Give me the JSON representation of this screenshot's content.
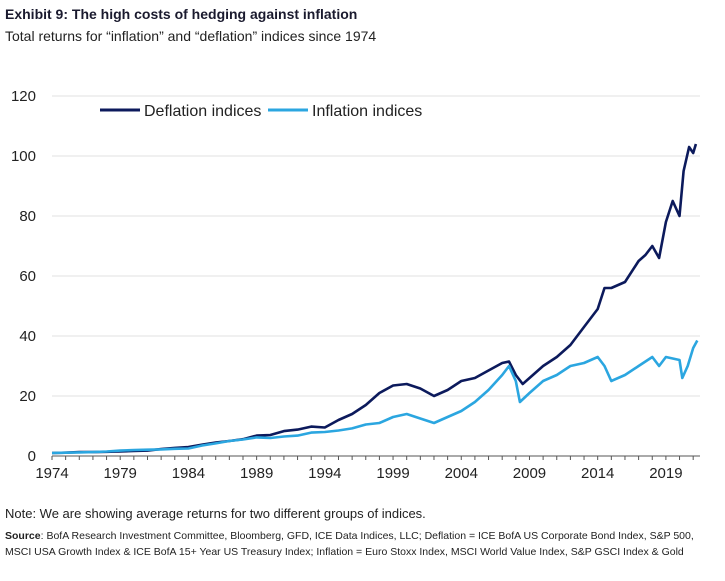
{
  "header": {
    "title": "Exhibit 9: The high costs of hedging against inflation",
    "subtitle": "Total returns for “inflation” and “deflation” indices since 1974"
  },
  "footer": {
    "note": "Note: We are showing average returns for two different groups of indices.",
    "source_label": "Source",
    "source_text": ": BofA Research Investment Committee, Bloomberg, GFD, ICE Data Indices, LLC; Deflation = ICE BofA US Corporate Bond Index, S&P 500, MSCI USA Growth Index & ICE BofA 15+ Year US Treasury Index; Inflation = Euro Stoxx Index, MSCI World Value Index, S&P GSCI Index & Gold"
  },
  "colors": {
    "deflation": "#0c1a5c",
    "inflation": "#2ba6e0",
    "axis": "#555555",
    "grid": "#e2e2e2"
  },
  "chart_data": {
    "type": "line",
    "title": "Exhibit 9: The high costs of hedging against inflation",
    "subtitle": "Total returns for “inflation” and “deflation” indices since 1974",
    "xlabel": "",
    "ylabel": "",
    "xlim": [
      1974,
      2021.5
    ],
    "ylim": [
      0,
      120
    ],
    "x_ticks": [
      "1974",
      "1979",
      "1984",
      "1989",
      "1994",
      "1999",
      "2004",
      "2009",
      "2014",
      "2019"
    ],
    "y_ticks": [
      "0",
      "20",
      "40",
      "60",
      "80",
      "100",
      "120"
    ],
    "grid": "horizontal",
    "legend_position": "top-left",
    "series": [
      {
        "name": "Deflation indices",
        "points": [
          [
            1974,
            1.0
          ],
          [
            1975,
            1.1
          ],
          [
            1976,
            1.3
          ],
          [
            1977,
            1.3
          ],
          [
            1978,
            1.4
          ],
          [
            1979,
            1.5
          ],
          [
            1980,
            1.7
          ],
          [
            1981,
            1.8
          ],
          [
            1982,
            2.3
          ],
          [
            1983,
            2.7
          ],
          [
            1984,
            3.0
          ],
          [
            1985,
            3.8
          ],
          [
            1986,
            4.5
          ],
          [
            1987,
            5.0
          ],
          [
            1988,
            5.6
          ],
          [
            1989,
            6.8
          ],
          [
            1990,
            7.0
          ],
          [
            1991,
            8.3
          ],
          [
            1992,
            8.8
          ],
          [
            1993,
            9.8
          ],
          [
            1994,
            9.5
          ],
          [
            1995,
            12.0
          ],
          [
            1996,
            14.0
          ],
          [
            1997,
            17.0
          ],
          [
            1998,
            21.0
          ],
          [
            1999,
            23.5
          ],
          [
            2000,
            24.0
          ],
          [
            2001,
            22.5
          ],
          [
            2002,
            20.0
          ],
          [
            2003,
            22.0
          ],
          [
            2004,
            25.0
          ],
          [
            2005,
            26.0
          ],
          [
            2006,
            28.5
          ],
          [
            2007,
            31.0
          ],
          [
            2007.5,
            31.5
          ],
          [
            2008,
            27.0
          ],
          [
            2008.5,
            24.0
          ],
          [
            2009,
            26.0
          ],
          [
            2010,
            30.0
          ],
          [
            2011,
            33.0
          ],
          [
            2012,
            37.0
          ],
          [
            2013,
            43.0
          ],
          [
            2014,
            49.0
          ],
          [
            2014.5,
            56.0
          ],
          [
            2015,
            56.0
          ],
          [
            2016,
            58.0
          ],
          [
            2017,
            65.0
          ],
          [
            2017.5,
            67.0
          ],
          [
            2018,
            70.0
          ],
          [
            2018.5,
            66.0
          ],
          [
            2019,
            78.0
          ],
          [
            2019.5,
            85.0
          ],
          [
            2020,
            80.0
          ],
          [
            2020.3,
            95.0
          ],
          [
            2020.7,
            103.0
          ],
          [
            2021,
            101.0
          ],
          [
            2021.2,
            104.0
          ]
        ]
      },
      {
        "name": "Inflation indices",
        "points": [
          [
            1974,
            1.0
          ],
          [
            1975,
            1.1
          ],
          [
            1976,
            1.2
          ],
          [
            1977,
            1.3
          ],
          [
            1978,
            1.5
          ],
          [
            1979,
            1.8
          ],
          [
            1980,
            2.0
          ],
          [
            1981,
            2.1
          ],
          [
            1982,
            2.2
          ],
          [
            1983,
            2.4
          ],
          [
            1984,
            2.5
          ],
          [
            1985,
            3.5
          ],
          [
            1986,
            4.2
          ],
          [
            1987,
            5.0
          ],
          [
            1988,
            5.5
          ],
          [
            1989,
            6.2
          ],
          [
            1990,
            6.0
          ],
          [
            1991,
            6.5
          ],
          [
            1992,
            6.8
          ],
          [
            1993,
            7.8
          ],
          [
            1994,
            8.0
          ],
          [
            1995,
            8.5
          ],
          [
            1996,
            9.2
          ],
          [
            1997,
            10.5
          ],
          [
            1998,
            11.0
          ],
          [
            1999,
            13.0
          ],
          [
            2000,
            14.0
          ],
          [
            2001,
            12.5
          ],
          [
            2002,
            11.0
          ],
          [
            2003,
            13.0
          ],
          [
            2004,
            15.0
          ],
          [
            2005,
            18.0
          ],
          [
            2006,
            22.0
          ],
          [
            2007,
            27.0
          ],
          [
            2007.5,
            30.0
          ],
          [
            2008,
            25.0
          ],
          [
            2008.3,
            18.0
          ],
          [
            2009,
            21.0
          ],
          [
            2010,
            25.0
          ],
          [
            2011,
            27.0
          ],
          [
            2012,
            30.0
          ],
          [
            2013,
            31.0
          ],
          [
            2014,
            33.0
          ],
          [
            2014.5,
            30.0
          ],
          [
            2015,
            25.0
          ],
          [
            2016,
            27.0
          ],
          [
            2017,
            30.0
          ],
          [
            2018,
            33.0
          ],
          [
            2018.5,
            30.0
          ],
          [
            2019,
            33.0
          ],
          [
            2020,
            32.0
          ],
          [
            2020.2,
            26.0
          ],
          [
            2020.6,
            30.0
          ],
          [
            2021,
            36.0
          ],
          [
            2021.3,
            38.5
          ]
        ]
      }
    ]
  }
}
